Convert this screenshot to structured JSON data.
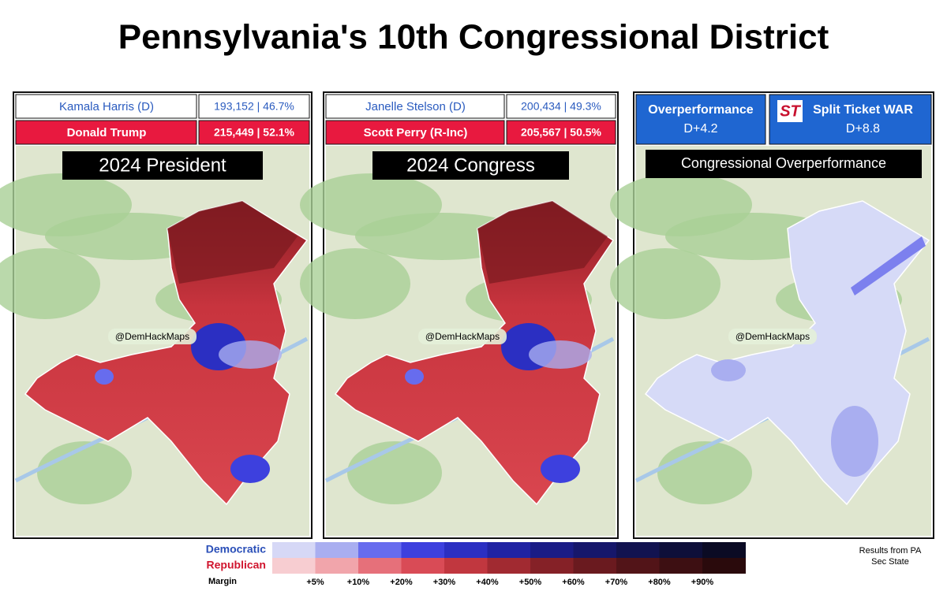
{
  "title": "Pennsylvania's 10th Congressional District",
  "panels": [
    {
      "rows": [
        {
          "name": "Kamala Harris (D)",
          "result": "193,152 | 46.7%"
        },
        {
          "name": "Donald Trump",
          "result": "215,449 | 52.1%"
        }
      ],
      "map_label": "2024 President"
    },
    {
      "rows": [
        {
          "name": "Janelle Stelson (D)",
          "result": "200,434 | 49.3%"
        },
        {
          "name": "Scott Perry (R-Inc)",
          "result": "205,567 | 50.5%"
        }
      ],
      "map_label": "2024 Congress"
    }
  ],
  "overperformance": {
    "cells": [
      {
        "label": "Overperformance",
        "value": "D+4.2"
      },
      {
        "logo": "ST",
        "label": "Split Ticket WAR",
        "value": "D+8.8"
      }
    ],
    "map_label": "Congressional Overperformance"
  },
  "watermark": "@DemHackMaps",
  "legend": {
    "rows": [
      {
        "label": "Democratic",
        "colors": [
          "#d6d8f6",
          "#a9aef0",
          "#676cee",
          "#3d40de",
          "#2b2fc2",
          "#2023a3",
          "#1a1c86",
          "#16176b",
          "#121350",
          "#0e0f39",
          "#0b0b24"
        ]
      },
      {
        "label": "Republican",
        "colors": [
          "#f7cdd1",
          "#f1a5ab",
          "#e6707a",
          "#d94b56",
          "#c1373f",
          "#a12a31",
          "#852127",
          "#6a1a1f",
          "#521418",
          "#3d0f12",
          "#2a0a0c"
        ]
      }
    ],
    "axis_label": "Margin",
    "ticks": [
      "+5%",
      "+10%",
      "+20%",
      "+30%",
      "+40%",
      "+50%",
      "+60%",
      "+70%",
      "+80%",
      "+90%"
    ]
  },
  "source": [
    "Results from PA",
    "Sec State"
  ]
}
